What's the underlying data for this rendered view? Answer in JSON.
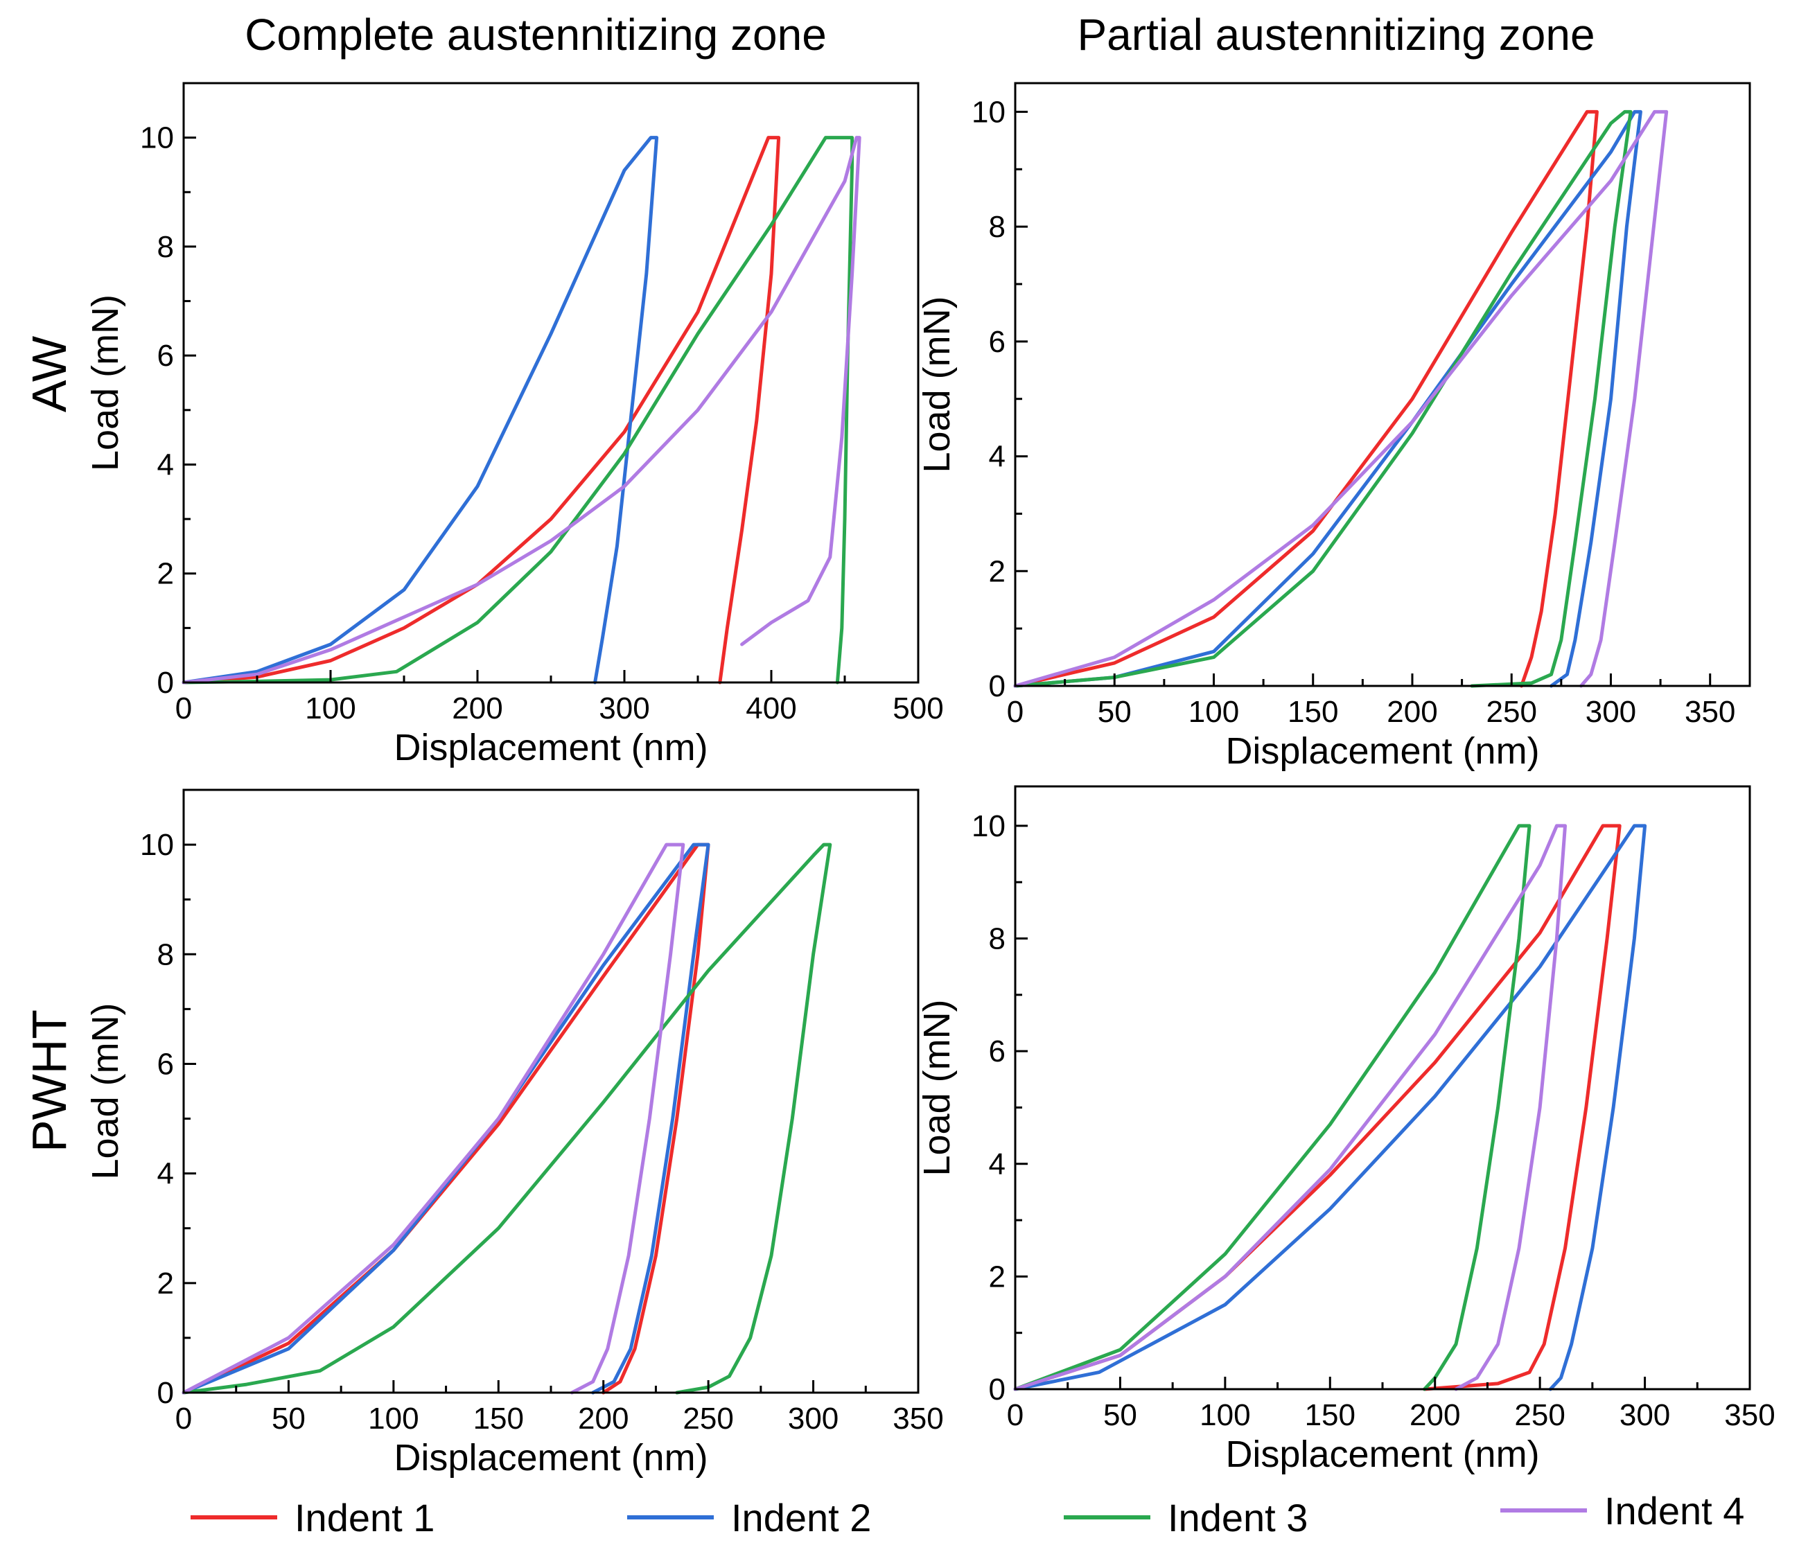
{
  "column_titles": [
    "Complete austennitizing zone",
    "Partial austennitizing zone"
  ],
  "row_labels": [
    "AW",
    "PWHT"
  ],
  "legend": [
    {
      "label": "Indent 1",
      "color": "#ee2b2b"
    },
    {
      "label": "Indent 2",
      "color": "#2f6fd6"
    },
    {
      "label": "Indent 3",
      "color": "#2aa84f"
    },
    {
      "label": "Indent 4",
      "color": "#b07be3"
    }
  ],
  "chart_data": [
    {
      "type": "line",
      "panel": "AW - Complete austennitizing zone",
      "xlabel": "Displacement (nm)",
      "ylabel": "Load (mN)",
      "xlim": [
        0,
        500
      ],
      "ylim": [
        0,
        11
      ],
      "xticks": [
        0,
        100,
        200,
        300,
        400,
        500
      ],
      "yticks": [
        0,
        2,
        4,
        6,
        8,
        10
      ],
      "series": [
        {
          "name": "Indent 1",
          "x": [
            0,
            50,
            100,
            150,
            200,
            250,
            300,
            350,
            398,
            405,
            405,
            400,
            390,
            380,
            370,
            365
          ],
          "y": [
            0,
            0.1,
            0.4,
            1.0,
            1.8,
            3.0,
            4.6,
            6.8,
            10,
            10,
            10,
            7.5,
            4.8,
            2.8,
            1.0,
            0
          ]
        },
        {
          "name": "Indent 2",
          "x": [
            0,
            50,
            100,
            150,
            200,
            250,
            300,
            318,
            322,
            322,
            315,
            305,
            295,
            285,
            280
          ],
          "y": [
            0,
            0.2,
            0.7,
            1.7,
            3.6,
            6.4,
            9.4,
            10,
            10,
            10,
            7.5,
            5.0,
            2.5,
            0.8,
            0
          ]
        },
        {
          "name": "Indent 3",
          "x": [
            0,
            50,
            100,
            145,
            200,
            250,
            300,
            350,
            400,
            437,
            455,
            455,
            452,
            450,
            448,
            445
          ],
          "y": [
            0,
            0.02,
            0.05,
            0.2,
            1.1,
            2.4,
            4.2,
            6.4,
            8.4,
            10,
            10,
            9.5,
            6.0,
            3.0,
            1.0,
            0
          ]
        },
        {
          "name": "Indent 4",
          "x": [
            0,
            50,
            100,
            150,
            200,
            250,
            300,
            350,
            400,
            450,
            458,
            460,
            455,
            448,
            440,
            425,
            400,
            380
          ],
          "y": [
            0,
            0.15,
            0.6,
            1.2,
            1.8,
            2.6,
            3.6,
            5.0,
            6.8,
            9.2,
            10,
            10,
            7.5,
            4.5,
            2.3,
            1.5,
            1.1,
            0.7
          ]
        }
      ]
    },
    {
      "type": "line",
      "panel": "AW - Partial austennitizing zone",
      "xlabel": "Displacement (nm)",
      "ylabel": "Load (mN)",
      "xlim": [
        0,
        370
      ],
      "ylim": [
        0,
        10.5
      ],
      "xticks": [
        0,
        50,
        100,
        150,
        200,
        250,
        300,
        350
      ],
      "yticks": [
        0,
        2,
        4,
        6,
        8,
        10
      ],
      "series": [
        {
          "name": "Indent 1",
          "x": [
            0,
            50,
            100,
            150,
            200,
            250,
            288,
            293,
            293,
            288,
            280,
            272,
            265,
            260,
            255
          ],
          "y": [
            0,
            0.4,
            1.2,
            2.7,
            5.0,
            7.9,
            10,
            10,
            10,
            8.0,
            5.5,
            3.0,
            1.3,
            0.5,
            0
          ]
        },
        {
          "name": "Indent 2",
          "x": [
            0,
            50,
            100,
            150,
            200,
            250,
            300,
            312,
            315,
            315,
            308,
            300,
            290,
            282,
            278,
            270
          ],
          "y": [
            0,
            0.15,
            0.6,
            2.3,
            4.6,
            7.0,
            9.3,
            10,
            10,
            10,
            8.0,
            5.0,
            2.5,
            0.8,
            0.2,
            0
          ]
        },
        {
          "name": "Indent 3",
          "x": [
            0,
            50,
            100,
            150,
            200,
            250,
            300,
            307,
            310,
            310,
            302,
            292,
            282,
            275,
            270,
            260,
            230
          ],
          "y": [
            0,
            0.15,
            0.5,
            2.0,
            4.4,
            7.2,
            9.8,
            10,
            10,
            10,
            8.0,
            5.0,
            2.5,
            0.8,
            0.2,
            0.05,
            0
          ]
        },
        {
          "name": "Indent 4",
          "x": [
            0,
            50,
            100,
            150,
            200,
            250,
            300,
            322,
            328,
            328,
            320,
            312,
            302,
            295,
            290,
            285
          ],
          "y": [
            0,
            0.5,
            1.5,
            2.8,
            4.6,
            6.8,
            8.8,
            10,
            10,
            10,
            7.5,
            5.0,
            2.5,
            0.8,
            0.2,
            0
          ]
        }
      ]
    },
    {
      "type": "line",
      "panel": "PWHT - Complete austennitizing zone",
      "xlabel": "Displacement (nm)",
      "ylabel": "Load (mN)",
      "xlim": [
        0,
        350
      ],
      "ylim": [
        0,
        11
      ],
      "xticks": [
        0,
        50,
        100,
        150,
        200,
        250,
        300,
        350
      ],
      "yticks": [
        0,
        2,
        4,
        6,
        8,
        10
      ],
      "series": [
        {
          "name": "Indent 1",
          "x": [
            0,
            50,
            100,
            150,
            200,
            245,
            250,
            250,
            245,
            235,
            225,
            215,
            208,
            200
          ],
          "y": [
            0,
            0.9,
            2.6,
            4.9,
            7.6,
            10,
            10,
            10,
            8.0,
            5.0,
            2.5,
            0.8,
            0.2,
            0
          ]
        },
        {
          "name": "Indent 2",
          "x": [
            0,
            50,
            100,
            150,
            200,
            243,
            250,
            250,
            243,
            233,
            223,
            213,
            205,
            195
          ],
          "y": [
            0,
            0.8,
            2.6,
            5.0,
            7.8,
            10,
            10,
            10,
            8.0,
            5.0,
            2.5,
            0.8,
            0.2,
            0
          ]
        },
        {
          "name": "Indent 3",
          "x": [
            0,
            30,
            65,
            100,
            150,
            200,
            250,
            300,
            305,
            308,
            308,
            300,
            290,
            280,
            270,
            260,
            250,
            235
          ],
          "y": [
            0,
            0.15,
            0.4,
            1.2,
            3.0,
            5.3,
            7.7,
            9.8,
            10,
            10,
            10,
            8.0,
            5.0,
            2.5,
            1.0,
            0.3,
            0.1,
            0
          ]
        },
        {
          "name": "Indent 4",
          "x": [
            0,
            50,
            100,
            150,
            200,
            230,
            238,
            238,
            232,
            222,
            212,
            202,
            195,
            185
          ],
          "y": [
            0,
            1.0,
            2.7,
            5.0,
            8.0,
            10,
            10,
            10,
            8.0,
            5.0,
            2.5,
            0.8,
            0.2,
            0
          ]
        }
      ]
    },
    {
      "type": "line",
      "panel": "PWHT - Partial austennitizing zone",
      "xlabel": "Displacement (nm)",
      "ylabel": "Load (mN)",
      "xlim": [
        0,
        350
      ],
      "ylim": [
        0,
        10.7
      ],
      "xticks": [
        0,
        50,
        100,
        150,
        200,
        250,
        300,
        350
      ],
      "yticks": [
        0,
        2,
        4,
        6,
        8,
        10
      ],
      "series": [
        {
          "name": "Indent 1",
          "x": [
            0,
            50,
            100,
            150,
            200,
            250,
            280,
            288,
            288,
            282,
            272,
            262,
            252,
            245,
            230,
            195
          ],
          "y": [
            0,
            0.6,
            2.0,
            3.8,
            5.8,
            8.1,
            10,
            10,
            10,
            8.0,
            5.0,
            2.5,
            0.8,
            0.3,
            0.1,
            0
          ]
        },
        {
          "name": "Indent 2",
          "x": [
            0,
            40,
            100,
            150,
            200,
            250,
            295,
            300,
            300,
            295,
            285,
            275,
            265,
            260,
            255
          ],
          "y": [
            0,
            0.3,
            1.5,
            3.2,
            5.2,
            7.5,
            10,
            10,
            10,
            8.0,
            5.0,
            2.5,
            0.8,
            0.2,
            0
          ]
        },
        {
          "name": "Indent 3",
          "x": [
            0,
            50,
            100,
            150,
            200,
            240,
            245,
            245,
            240,
            230,
            220,
            210,
            200,
            195
          ],
          "y": [
            0,
            0.7,
            2.4,
            4.7,
            7.4,
            10,
            10,
            10,
            8.0,
            5.0,
            2.5,
            0.8,
            0.2,
            0
          ]
        },
        {
          "name": "Indent 4",
          "x": [
            0,
            50,
            100,
            150,
            200,
            250,
            258,
            262,
            262,
            258,
            250,
            240,
            230,
            220,
            210
          ],
          "y": [
            0,
            0.6,
            2.0,
            3.9,
            6.3,
            9.3,
            10,
            10,
            10,
            8.0,
            5.0,
            2.5,
            0.8,
            0.2,
            0
          ]
        }
      ]
    }
  ]
}
